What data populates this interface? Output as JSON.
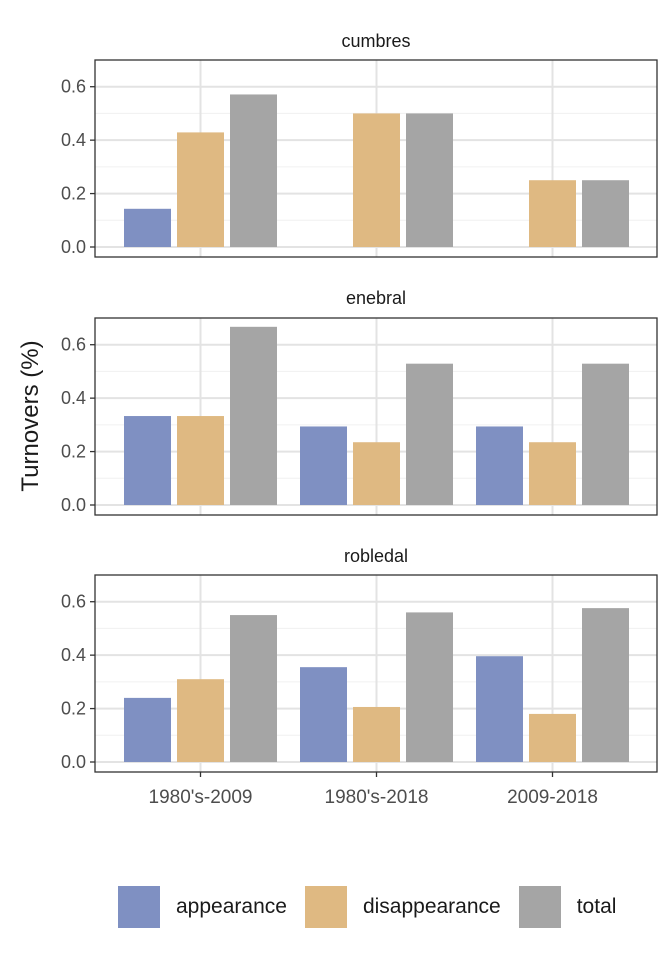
{
  "chart_data": {
    "type": "bar",
    "ylabel": "Turnovers (%)",
    "xlabel": "",
    "ylim": [
      0,
      0.7
    ],
    "y_ticks": [
      "0.0",
      "0.2",
      "0.4",
      "0.6"
    ],
    "grid": true,
    "legend_position": "bottom",
    "categories": [
      "1980's-2009",
      "1980's-2018",
      "2009-2018"
    ],
    "series_names": [
      "appearance",
      "disappearance",
      "total"
    ],
    "colors": {
      "appearance": "#7f90c2",
      "disappearance": "#dfb982",
      "total": "#a5a5a5"
    },
    "facets": [
      {
        "title": "cumbres",
        "series": [
          {
            "name": "appearance",
            "values": [
              0.143,
              0,
              0
            ]
          },
          {
            "name": "disappearance",
            "values": [
              0.429,
              0.5,
              0.25
            ]
          },
          {
            "name": "total",
            "values": [
              0.571,
              0.5,
              0.25
            ]
          }
        ]
      },
      {
        "title": "enebral",
        "series": [
          {
            "name": "appearance",
            "values": [
              0.333,
              0.294,
              0.294
            ]
          },
          {
            "name": "disappearance",
            "values": [
              0.333,
              0.235,
              0.235
            ]
          },
          {
            "name": "total",
            "values": [
              0.667,
              0.529,
              0.529
            ]
          }
        ]
      },
      {
        "title": "robledal",
        "series": [
          {
            "name": "appearance",
            "values": [
              0.24,
              0.355,
              0.396
            ]
          },
          {
            "name": "disappearance",
            "values": [
              0.31,
              0.206,
              0.18
            ]
          },
          {
            "name": "total",
            "values": [
              0.55,
              0.56,
              0.576
            ]
          }
        ]
      }
    ]
  }
}
